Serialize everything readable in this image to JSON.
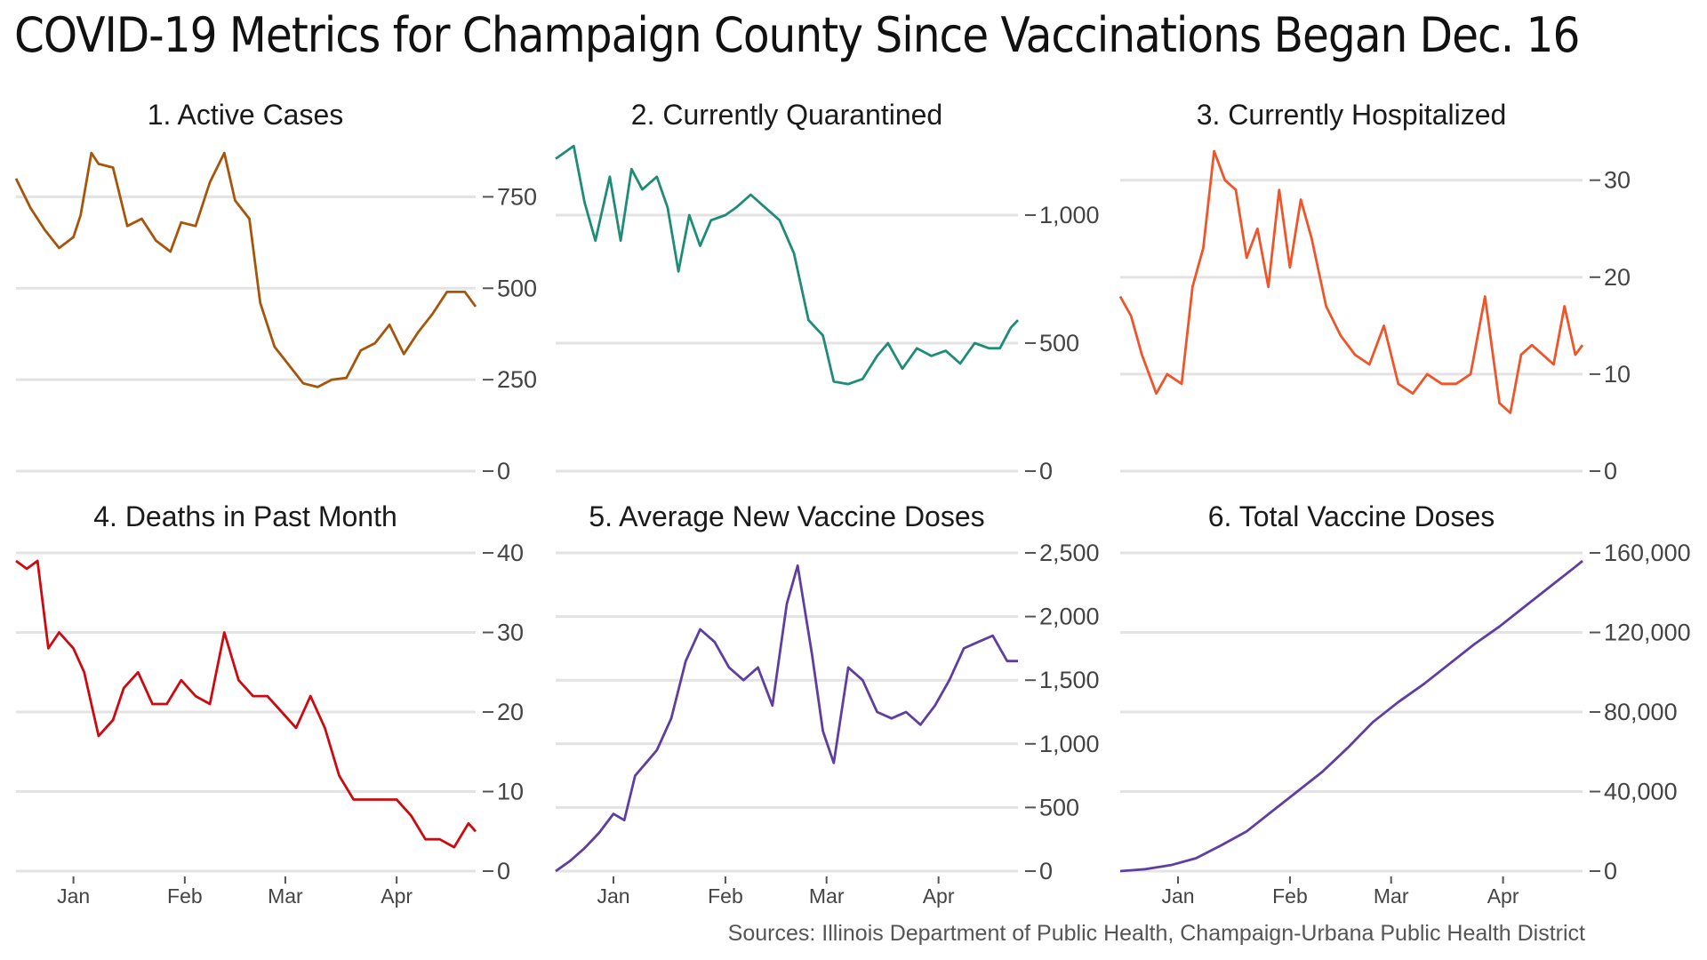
{
  "title": "COVID-19 Metrics for Champaign County Since Vaccinations Began Dec. 16",
  "source": "Sources: Illinois Department of Public Health, Champaign-Urbana Public Health District",
  "chart_data": [
    {
      "type": "line",
      "title": "1. Active Cases",
      "color": "#A6560B",
      "ylim": [
        0,
        875
      ],
      "yticks": [
        0,
        250,
        500,
        750
      ],
      "ytick_labels": [
        "0",
        "250",
        "500",
        "750"
      ],
      "xticks": [
        "Jan",
        "Feb",
        "Mar",
        "Apr"
      ],
      "grid": true,
      "x": [
        "2020-12-16",
        "2020-12-20",
        "2020-12-24",
        "2020-12-28",
        "2021-01-01",
        "2021-01-03",
        "2021-01-06",
        "2021-01-08",
        "2021-01-12",
        "2021-01-16",
        "2021-01-20",
        "2021-01-24",
        "2021-01-28",
        "2021-01-31",
        "2021-02-04",
        "2021-02-08",
        "2021-02-12",
        "2021-02-15",
        "2021-02-19",
        "2021-02-22",
        "2021-02-26",
        "2021-03-02",
        "2021-03-06",
        "2021-03-10",
        "2021-03-14",
        "2021-03-18",
        "2021-03-22",
        "2021-03-26",
        "2021-03-30",
        "2021-04-03",
        "2021-04-07",
        "2021-04-11",
        "2021-04-15",
        "2021-04-20",
        "2021-04-23"
      ],
      "series": [
        {
          "values": [
            800,
            720,
            660,
            610,
            640,
            700,
            870,
            840,
            830,
            670,
            690,
            630,
            600,
            680,
            670,
            790,
            870,
            740,
            690,
            460,
            340,
            290,
            240,
            230,
            250,
            255,
            330,
            350,
            400,
            320,
            380,
            430,
            490,
            490,
            450
          ]
        }
      ]
    },
    {
      "type": "line",
      "title": "2. Currently Quarantined",
      "color": "#1E8C76",
      "ylim": [
        0,
        1250
      ],
      "yticks": [
        0,
        500,
        1000
      ],
      "ytick_labels": [
        "0",
        "500",
        "1,000"
      ],
      "xticks": [
        "Jan",
        "Feb",
        "Mar",
        "Apr"
      ],
      "grid": true,
      "x": [
        "2020-12-16",
        "2020-12-18",
        "2020-12-21",
        "2020-12-24",
        "2020-12-27",
        "2020-12-31",
        "2021-01-03",
        "2021-01-06",
        "2021-01-09",
        "2021-01-13",
        "2021-01-16",
        "2021-01-19",
        "2021-01-22",
        "2021-01-25",
        "2021-01-28",
        "2021-02-01",
        "2021-02-04",
        "2021-02-08",
        "2021-02-12",
        "2021-02-16",
        "2021-02-20",
        "2021-02-24",
        "2021-02-28",
        "2021-03-03",
        "2021-03-07",
        "2021-03-11",
        "2021-03-15",
        "2021-03-18",
        "2021-03-22",
        "2021-03-26",
        "2021-03-30",
        "2021-04-03",
        "2021-04-07",
        "2021-04-11",
        "2021-04-15",
        "2021-04-18",
        "2021-04-21",
        "2021-04-23"
      ],
      "series": [
        {
          "values": [
            1220,
            1240,
            1270,
            1050,
            900,
            1150,
            900,
            1180,
            1100,
            1150,
            1030,
            780,
            1000,
            880,
            980,
            1000,
            1030,
            1080,
            1030,
            980,
            850,
            590,
            530,
            350,
            340,
            360,
            450,
            500,
            400,
            480,
            450,
            470,
            420,
            500,
            480,
            480,
            560,
            590
          ]
        }
      ]
    },
    {
      "type": "line",
      "title": "3. Currently Hospitalized",
      "color": "#F0552A",
      "ylim": [
        0,
        33
      ],
      "yticks": [
        0,
        10,
        20,
        30
      ],
      "ytick_labels": [
        "0",
        "10",
        "20",
        "30"
      ],
      "xticks": [
        "Jan",
        "Feb",
        "Mar",
        "Apr"
      ],
      "grid": true,
      "x": [
        "2020-12-16",
        "2020-12-19",
        "2020-12-22",
        "2020-12-26",
        "2020-12-29",
        "2021-01-02",
        "2021-01-05",
        "2021-01-08",
        "2021-01-11",
        "2021-01-14",
        "2021-01-17",
        "2021-01-20",
        "2021-01-23",
        "2021-01-26",
        "2021-01-29",
        "2021-02-01",
        "2021-02-04",
        "2021-02-07",
        "2021-02-11",
        "2021-02-15",
        "2021-02-19",
        "2021-02-23",
        "2021-02-27",
        "2021-03-03",
        "2021-03-07",
        "2021-03-11",
        "2021-03-15",
        "2021-03-19",
        "2021-03-23",
        "2021-03-27",
        "2021-03-31",
        "2021-04-03",
        "2021-04-06",
        "2021-04-09",
        "2021-04-12",
        "2021-04-15",
        "2021-04-18",
        "2021-04-21",
        "2021-04-23"
      ],
      "series": [
        {
          "values": [
            18,
            16,
            12,
            8,
            10,
            9,
            19,
            23,
            33,
            30,
            29,
            22,
            25,
            19,
            29,
            21,
            28,
            24,
            17,
            14,
            12,
            11,
            15,
            9,
            8,
            10,
            9,
            9,
            10,
            18,
            7,
            6,
            12,
            13,
            12,
            11,
            17,
            12,
            13
          ]
        }
      ]
    },
    {
      "type": "line",
      "title": "4. Deaths in Past Month",
      "color": "#CC0A10",
      "ylim": [
        0,
        40
      ],
      "yticks": [
        0,
        10,
        20,
        30,
        40
      ],
      "ytick_labels": [
        "0",
        "10",
        "20",
        "30",
        "40"
      ],
      "xticks": [
        "Jan",
        "Feb",
        "Mar",
        "Apr"
      ],
      "grid": true,
      "x": [
        "2020-12-16",
        "2020-12-19",
        "2020-12-22",
        "2020-12-25",
        "2020-12-28",
        "2021-01-01",
        "2021-01-04",
        "2021-01-08",
        "2021-01-12",
        "2021-01-15",
        "2021-01-19",
        "2021-01-23",
        "2021-01-27",
        "2021-01-31",
        "2021-02-04",
        "2021-02-08",
        "2021-02-12",
        "2021-02-16",
        "2021-02-20",
        "2021-02-24",
        "2021-02-28",
        "2021-03-04",
        "2021-03-08",
        "2021-03-12",
        "2021-03-16",
        "2021-03-20",
        "2021-03-24",
        "2021-03-28",
        "2021-04-01",
        "2021-04-05",
        "2021-04-09",
        "2021-04-13",
        "2021-04-17",
        "2021-04-21",
        "2021-04-23"
      ],
      "series": [
        {
          "values": [
            39,
            38,
            39,
            28,
            30,
            28,
            25,
            17,
            19,
            23,
            25,
            21,
            21,
            24,
            22,
            21,
            30,
            24,
            22,
            22,
            20,
            18,
            22,
            18,
            12,
            9,
            9,
            9,
            9,
            7,
            4,
            4,
            3,
            6,
            5
          ]
        }
      ]
    },
    {
      "type": "line",
      "title": "5. Average New Vaccine Doses",
      "color": "#5E3EA1",
      "ylim": [
        0,
        2500
      ],
      "yticks": [
        0,
        500,
        1000,
        1500,
        2000,
        2500
      ],
      "ytick_labels": [
        "0",
        "500",
        "1,000",
        "1,500",
        "2,000",
        "2,500"
      ],
      "xticks": [
        "Jan",
        "Feb",
        "Mar",
        "Apr"
      ],
      "grid": true,
      "x": [
        "2020-12-16",
        "2020-12-20",
        "2020-12-24",
        "2020-12-28",
        "2021-01-01",
        "2021-01-04",
        "2021-01-07",
        "2021-01-10",
        "2021-01-13",
        "2021-01-17",
        "2021-01-21",
        "2021-01-25",
        "2021-01-29",
        "2021-02-02",
        "2021-02-06",
        "2021-02-10",
        "2021-02-14",
        "2021-02-18",
        "2021-02-21",
        "2021-02-25",
        "2021-02-28",
        "2021-03-03",
        "2021-03-07",
        "2021-03-11",
        "2021-03-15",
        "2021-03-19",
        "2021-03-23",
        "2021-03-27",
        "2021-03-31",
        "2021-04-04",
        "2021-04-08",
        "2021-04-12",
        "2021-04-16",
        "2021-04-20",
        "2021-04-23"
      ],
      "series": [
        {
          "values": [
            0,
            80,
            180,
            300,
            450,
            400,
            750,
            850,
            950,
            1200,
            1650,
            1900,
            1800,
            1600,
            1500,
            1600,
            1300,
            2100,
            2400,
            1700,
            1100,
            850,
            1600,
            1500,
            1250,
            1200,
            1250,
            1150,
            1300,
            1500,
            1750,
            1800,
            1850,
            1650,
            1650
          ]
        }
      ]
    },
    {
      "type": "line",
      "title": "6. Total Vaccine Doses",
      "color": "#5E3EA1",
      "ylim": [
        0,
        160000
      ],
      "yticks": [
        0,
        40000,
        80000,
        120000,
        160000
      ],
      "ytick_labels": [
        "0",
        "40,000",
        "80,000",
        "120,000",
        "160,000"
      ],
      "xticks": [
        "Jan",
        "Feb",
        "Mar",
        "Apr"
      ],
      "grid": true,
      "x": [
        "2020-12-16",
        "2020-12-23",
        "2020-12-30",
        "2021-01-06",
        "2021-01-13",
        "2021-01-20",
        "2021-01-27",
        "2021-02-03",
        "2021-02-10",
        "2021-02-17",
        "2021-02-24",
        "2021-03-03",
        "2021-03-10",
        "2021-03-17",
        "2021-03-24",
        "2021-03-31",
        "2021-04-07",
        "2021-04-14",
        "2021-04-21",
        "2021-04-23"
      ],
      "series": [
        {
          "values": [
            0,
            1000,
            3000,
            6500,
            13000,
            20000,
            30000,
            40000,
            50000,
            62000,
            75000,
            85000,
            94000,
            104000,
            114000,
            123000,
            133000,
            143000,
            153000,
            156000
          ]
        }
      ]
    }
  ]
}
